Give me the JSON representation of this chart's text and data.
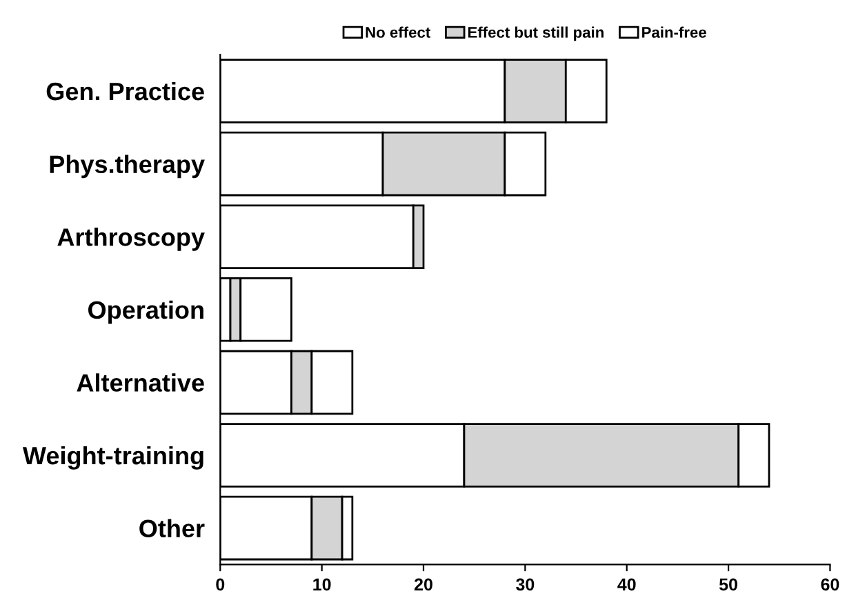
{
  "chart_data": {
    "type": "bar",
    "orientation": "horizontal",
    "stacked": true,
    "categories": [
      "Gen. Practice",
      "Phys.therapy",
      "Arthroscopy",
      "Operation",
      "Alternative",
      "Weight-training",
      "Other"
    ],
    "series": [
      {
        "name": "No effect",
        "color": "#ffffff",
        "values": [
          28,
          16,
          19,
          1,
          7,
          24,
          9
        ]
      },
      {
        "name": "Effect but still pain",
        "color": "#d4d4d4",
        "values": [
          6,
          12,
          1,
          1,
          2,
          27,
          3
        ]
      },
      {
        "name": "Pain-free",
        "color": "#ffffff",
        "values": [
          4,
          4,
          0,
          5,
          4,
          3,
          1
        ]
      }
    ],
    "xlim": [
      0,
      60
    ],
    "xticks": [
      0,
      10,
      20,
      30,
      40,
      50,
      60
    ],
    "grid": false,
    "legend": "top"
  }
}
